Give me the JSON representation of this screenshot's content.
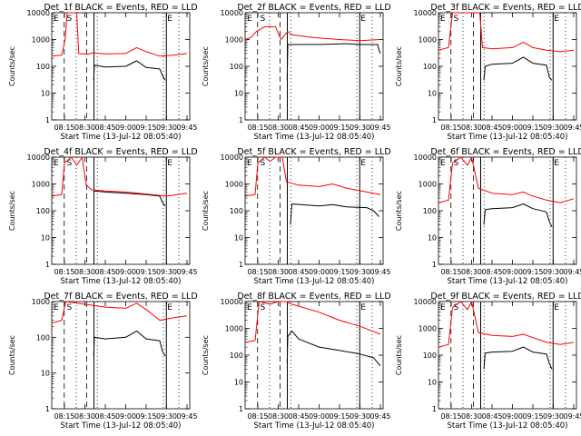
{
  "figure": {
    "x_axis_title": "Start Time (13-Jul-12 08:05:40)",
    "y_axis_title": "Counts/sec",
    "x_tick_labels": [
      "08:15",
      "08:30",
      "08:45",
      "09:00",
      "09:15",
      "09:30",
      "09:45"
    ],
    "y_tick_labels": [
      "1",
      "10",
      "100",
      "1000",
      "10000"
    ],
    "region_marks": [
      "E",
      "S",
      "E"
    ],
    "colors": {
      "events": "#000000",
      "lld": "#ff0000"
    }
  },
  "chart_data": [
    {
      "type": "line",
      "title": "Det_1f  BLACK = Events, RED = LLD",
      "xlabel": "Start Time (13-Jul-12 08:05:40)",
      "ylabel": "Counts/sec",
      "x_range": [
        "08:05:40",
        "09:47:00"
      ],
      "ylim": [
        1,
        10000
      ],
      "y_scale": "log",
      "series": [
        {
          "name": "Events",
          "color": "#000000",
          "points": [
            [
              "08:36:30",
              30
            ],
            [
              "08:37:00",
              110
            ],
            [
              "08:45:00",
              95
            ],
            [
              "09:00:00",
              100
            ],
            [
              "09:08:00",
              160
            ],
            [
              "09:15:00",
              90
            ],
            [
              "09:25:00",
              80
            ],
            [
              "09:27:00",
              45
            ],
            [
              "09:29:00",
              30
            ]
          ]
        },
        {
          "name": "LLD",
          "color": "#ff0000",
          "points": [
            [
              "08:05:40",
              240
            ],
            [
              "08:13:00",
              260
            ],
            [
              "08:15:30",
              1000
            ],
            [
              "08:17:00",
              10000
            ],
            [
              "08:24:00",
              10000
            ],
            [
              "08:25:30",
              300
            ],
            [
              "08:32:00",
              280
            ],
            [
              "08:36:00",
              320
            ],
            [
              "08:45:00",
              290
            ],
            [
              "09:00:00",
              300
            ],
            [
              "09:08:00",
              500
            ],
            [
              "09:15:00",
              350
            ],
            [
              "09:25:00",
              240
            ],
            [
              "09:35:00",
              260
            ],
            [
              "09:45:00",
              300
            ]
          ]
        }
      ]
    },
    {
      "type": "line",
      "title": "Det_2f  BLACK = Events, RED = LLD",
      "xlabel": "Start Time (13-Jul-12 08:05:40)",
      "ylabel": "Counts/sec",
      "x_range": [
        "08:05:40",
        "09:47:00"
      ],
      "ylim": [
        1,
        10000
      ],
      "y_scale": "log",
      "series": [
        {
          "name": "Events",
          "color": "#000000",
          "points": [
            [
              "08:36:30",
              30
            ],
            [
              "08:37:00",
              650
            ],
            [
              "09:00:00",
              650
            ],
            [
              "09:20:00",
              700
            ],
            [
              "09:30:00",
              650
            ],
            [
              "09:43:00",
              650
            ],
            [
              "09:44:00",
              400
            ],
            [
              "09:45:00",
              300
            ]
          ]
        },
        {
          "name": "LLD",
          "color": "#ff0000",
          "points": [
            [
              "08:05:40",
              1000
            ],
            [
              "08:10:00",
              1200
            ],
            [
              "08:14:00",
              2000
            ],
            [
              "08:20:00",
              3000
            ],
            [
              "08:28:00",
              3000
            ],
            [
              "08:32:00",
              1000
            ],
            [
              "08:37:00",
              2000
            ],
            [
              "08:40:00",
              1500
            ],
            [
              "08:55:00",
              1200
            ],
            [
              "09:15:00",
              1000
            ],
            [
              "09:30:00",
              900
            ],
            [
              "09:45:00",
              1000
            ]
          ]
        }
      ]
    },
    {
      "type": "line",
      "title": "Det_3f  BLACK = Events, RED = LLD",
      "xlabel": "Start Time (13-Jul-12 08:05:40)",
      "ylabel": "Counts/sec",
      "x_range": [
        "08:05:40",
        "09:47:00"
      ],
      "ylim": [
        1,
        10000
      ],
      "y_scale": "log",
      "series": [
        {
          "name": "Events",
          "color": "#000000",
          "points": [
            [
              "08:39:00",
              30
            ],
            [
              "08:40:00",
              100
            ],
            [
              "08:45:00",
              120
            ],
            [
              "09:00:00",
              130
            ],
            [
              "09:08:00",
              220
            ],
            [
              "09:15:00",
              130
            ],
            [
              "09:25:00",
              110
            ],
            [
              "09:27:00",
              40
            ],
            [
              "09:29:00",
              30
            ]
          ]
        },
        {
          "name": "LLD",
          "color": "#ff0000",
          "points": [
            [
              "08:05:40",
              400
            ],
            [
              "08:13:00",
              500
            ],
            [
              "08:16:00",
              10000
            ],
            [
              "08:36:00",
              10000
            ],
            [
              "08:38:00",
              500
            ],
            [
              "08:45:00",
              450
            ],
            [
              "09:00:00",
              500
            ],
            [
              "09:08:00",
              800
            ],
            [
              "09:15:00",
              500
            ],
            [
              "09:25:00",
              400
            ],
            [
              "09:35:00",
              350
            ],
            [
              "09:45:00",
              400
            ]
          ]
        }
      ]
    },
    {
      "type": "line",
      "title": "Det_4f  BLACK = Events, RED = LLD",
      "xlabel": "Start Time (13-Jul-12 08:05:40)",
      "ylabel": "Counts/sec",
      "x_range": [
        "08:05:40",
        "09:47:00"
      ],
      "ylim": [
        1,
        10000
      ],
      "y_scale": "log",
      "series": [
        {
          "name": "Events",
          "color": "#000000",
          "points": [
            [
              "08:37:00",
              550
            ],
            [
              "08:45:00",
              500
            ],
            [
              "09:00:00",
              450
            ],
            [
              "09:15:00",
              400
            ],
            [
              "09:25:00",
              350
            ],
            [
              "09:27:00",
              200
            ],
            [
              "09:29:00",
              150
            ]
          ]
        },
        {
          "name": "LLD",
          "color": "#ff0000",
          "points": [
            [
              "08:05:40",
              350
            ],
            [
              "08:13:00",
              400
            ],
            [
              "08:15:00",
              6000
            ],
            [
              "08:20:00",
              10000
            ],
            [
              "08:24:00",
              5000
            ],
            [
              "08:28:00",
              10000
            ],
            [
              "08:31:00",
              900
            ],
            [
              "08:35:00",
              600
            ],
            [
              "08:45:00",
              550
            ],
            [
              "09:00:00",
              500
            ],
            [
              "09:15:00",
              420
            ],
            [
              "09:30:00",
              350
            ],
            [
              "09:45:00",
              450
            ]
          ]
        }
      ]
    },
    {
      "type": "line",
      "title": "Det_5f  BLACK = Events, RED = LLD",
      "xlabel": "Start Time (13-Jul-12 08:05:40)",
      "ylabel": "Counts/sec",
      "x_range": [
        "08:05:40",
        "09:47:00"
      ],
      "ylim": [
        1,
        10000
      ],
      "y_scale": "log",
      "series": [
        {
          "name": "Events",
          "color": "#000000",
          "points": [
            [
              "08:39:00",
              30
            ],
            [
              "08:40:00",
              180
            ],
            [
              "09:00:00",
              150
            ],
            [
              "09:10:00",
              170
            ],
            [
              "09:20:00",
              140
            ],
            [
              "09:35:00",
              130
            ],
            [
              "09:40:00",
              100
            ],
            [
              "09:44:00",
              60
            ]
          ]
        },
        {
          "name": "LLD",
          "color": "#ff0000",
          "points": [
            [
              "08:05:40",
              350
            ],
            [
              "08:13:00",
              400
            ],
            [
              "08:15:00",
              6000
            ],
            [
              "08:20:00",
              10000
            ],
            [
              "08:24:00",
              7000
            ],
            [
              "08:28:00",
              10000
            ],
            [
              "08:33:00",
              10000
            ],
            [
              "08:36:00",
              1200
            ],
            [
              "08:45:00",
              900
            ],
            [
              "09:00:00",
              800
            ],
            [
              "09:10:00",
              1000
            ],
            [
              "09:20:00",
              700
            ],
            [
              "09:35:00",
              500
            ],
            [
              "09:45:00",
              400
            ]
          ]
        }
      ]
    },
    {
      "type": "line",
      "title": "Det_6f  BLACK = Events, RED = LLD",
      "xlabel": "Start Time (13-Jul-12 08:05:40)",
      "ylabel": "Counts/sec",
      "x_range": [
        "08:05:40",
        "09:47:00"
      ],
      "ylim": [
        1,
        10000
      ],
      "y_scale": "log",
      "series": [
        {
          "name": "Events",
          "color": "#000000",
          "points": [
            [
              "08:39:00",
              30
            ],
            [
              "08:40:00",
              110
            ],
            [
              "08:45:00",
              120
            ],
            [
              "09:00:00",
              130
            ],
            [
              "09:08:00",
              180
            ],
            [
              "09:15:00",
              120
            ],
            [
              "09:25:00",
              90
            ],
            [
              "09:27:00",
              40
            ],
            [
              "09:29:00",
              25
            ]
          ]
        },
        {
          "name": "LLD",
          "color": "#ff0000",
          "points": [
            [
              "08:05:40",
              200
            ],
            [
              "08:13:00",
              250
            ],
            [
              "08:16:00",
              6000
            ],
            [
              "08:22:00",
              10000
            ],
            [
              "08:27:00",
              5000
            ],
            [
              "08:30:00",
              10000
            ],
            [
              "08:35:00",
              700
            ],
            [
              "08:45:00",
              450
            ],
            [
              "09:00:00",
              400
            ],
            [
              "09:08:00",
              500
            ],
            [
              "09:15:00",
              350
            ],
            [
              "09:25:00",
              250
            ],
            [
              "09:35:00",
              200
            ],
            [
              "09:45:00",
              280
            ]
          ]
        }
      ]
    },
    {
      "type": "line",
      "title": "Det_7f  BLACK = Events, RED = LLD",
      "xlabel": "Start Time (13-Jul-12 08:05:40)",
      "ylabel": "Counts/sec",
      "x_range": [
        "08:05:40",
        "09:47:00"
      ],
      "ylim": [
        1,
        1000
      ],
      "y_scale": "log",
      "series": [
        {
          "name": "Events",
          "color": "#000000",
          "points": [
            [
              "08:36:30",
              30
            ],
            [
              "08:37:00",
              100
            ],
            [
              "08:45:00",
              90
            ],
            [
              "09:00:00",
              100
            ],
            [
              "09:08:00",
              150
            ],
            [
              "09:15:00",
              90
            ],
            [
              "09:25:00",
              80
            ],
            [
              "09:27:00",
              40
            ],
            [
              "09:29:00",
              30
            ]
          ]
        },
        {
          "name": "LLD",
          "color": "#ff0000",
          "points": [
            [
              "08:05:40",
              250
            ],
            [
              "08:13:00",
              300
            ],
            [
              "08:16:00",
              1000
            ],
            [
              "08:45:00",
              700
            ],
            [
              "09:00:00",
              650
            ],
            [
              "09:08:00",
              900
            ],
            [
              "09:15:00",
              600
            ],
            [
              "09:25:00",
              300
            ],
            [
              "09:35:00",
              350
            ],
            [
              "09:45:00",
              400
            ]
          ]
        }
      ]
    },
    {
      "type": "line",
      "title": "Det_8f  BLACK = Events, RED = LLD",
      "xlabel": "Start Time (13-Jul-12 08:05:40)",
      "ylabel": "Counts/sec",
      "x_range": [
        "08:05:40",
        "09:47:00"
      ],
      "ylim": [
        1,
        10000
      ],
      "y_scale": "log",
      "series": [
        {
          "name": "Events",
          "color": "#000000",
          "points": [
            [
              "08:36:30",
              50
            ],
            [
              "08:37:00",
              500
            ],
            [
              "08:40:00",
              800
            ],
            [
              "08:45:00",
              400
            ],
            [
              "09:00:00",
              200
            ],
            [
              "09:15:00",
              150
            ],
            [
              "09:30:00",
              110
            ],
            [
              "09:40:00",
              80
            ],
            [
              "09:45:00",
              40
            ]
          ]
        },
        {
          "name": "LLD",
          "color": "#ff0000",
          "points": [
            [
              "08:05:40",
              300
            ],
            [
              "08:13:00",
              350
            ],
            [
              "08:16:00",
              10000
            ],
            [
              "08:24:00",
              8000
            ],
            [
              "08:30:00",
              10000
            ],
            [
              "08:36:00",
              10000
            ],
            [
              "08:40:00",
              8000
            ],
            [
              "09:00:00",
              4000
            ],
            [
              "09:15:00",
              2000
            ],
            [
              "09:30:00",
              1200
            ],
            [
              "09:45:00",
              600
            ]
          ]
        }
      ]
    },
    {
      "type": "line",
      "title": "Det_9f  BLACK = Events, RED = LLD",
      "xlabel": "Start Time (13-Jul-12 08:05:40)",
      "ylabel": "Counts/sec",
      "x_range": [
        "08:05:40",
        "09:47:00"
      ],
      "ylim": [
        1,
        10000
      ],
      "y_scale": "log",
      "series": [
        {
          "name": "Events",
          "color": "#000000",
          "points": [
            [
              "08:39:00",
              30
            ],
            [
              "08:40:00",
              120
            ],
            [
              "08:45:00",
              130
            ],
            [
              "09:00:00",
              140
            ],
            [
              "09:08:00",
              200
            ],
            [
              "09:15:00",
              130
            ],
            [
              "09:25:00",
              110
            ],
            [
              "09:27:00",
              50
            ],
            [
              "09:29:00",
              30
            ]
          ]
        },
        {
          "name": "LLD",
          "color": "#ff0000",
          "points": [
            [
              "08:05:40",
              200
            ],
            [
              "08:13:00",
              250
            ],
            [
              "08:16:00",
              6000
            ],
            [
              "08:22:00",
              10000
            ],
            [
              "08:27:00",
              5000
            ],
            [
              "08:30:00",
              10000
            ],
            [
              "08:35:00",
              700
            ],
            [
              "08:45:00",
              550
            ],
            [
              "09:00:00",
              500
            ],
            [
              "09:08:00",
              600
            ],
            [
              "09:15:00",
              450
            ],
            [
              "09:25:00",
              300
            ],
            [
              "09:35:00",
              250
            ],
            [
              "09:45:00",
              300
            ]
          ]
        }
      ]
    }
  ]
}
